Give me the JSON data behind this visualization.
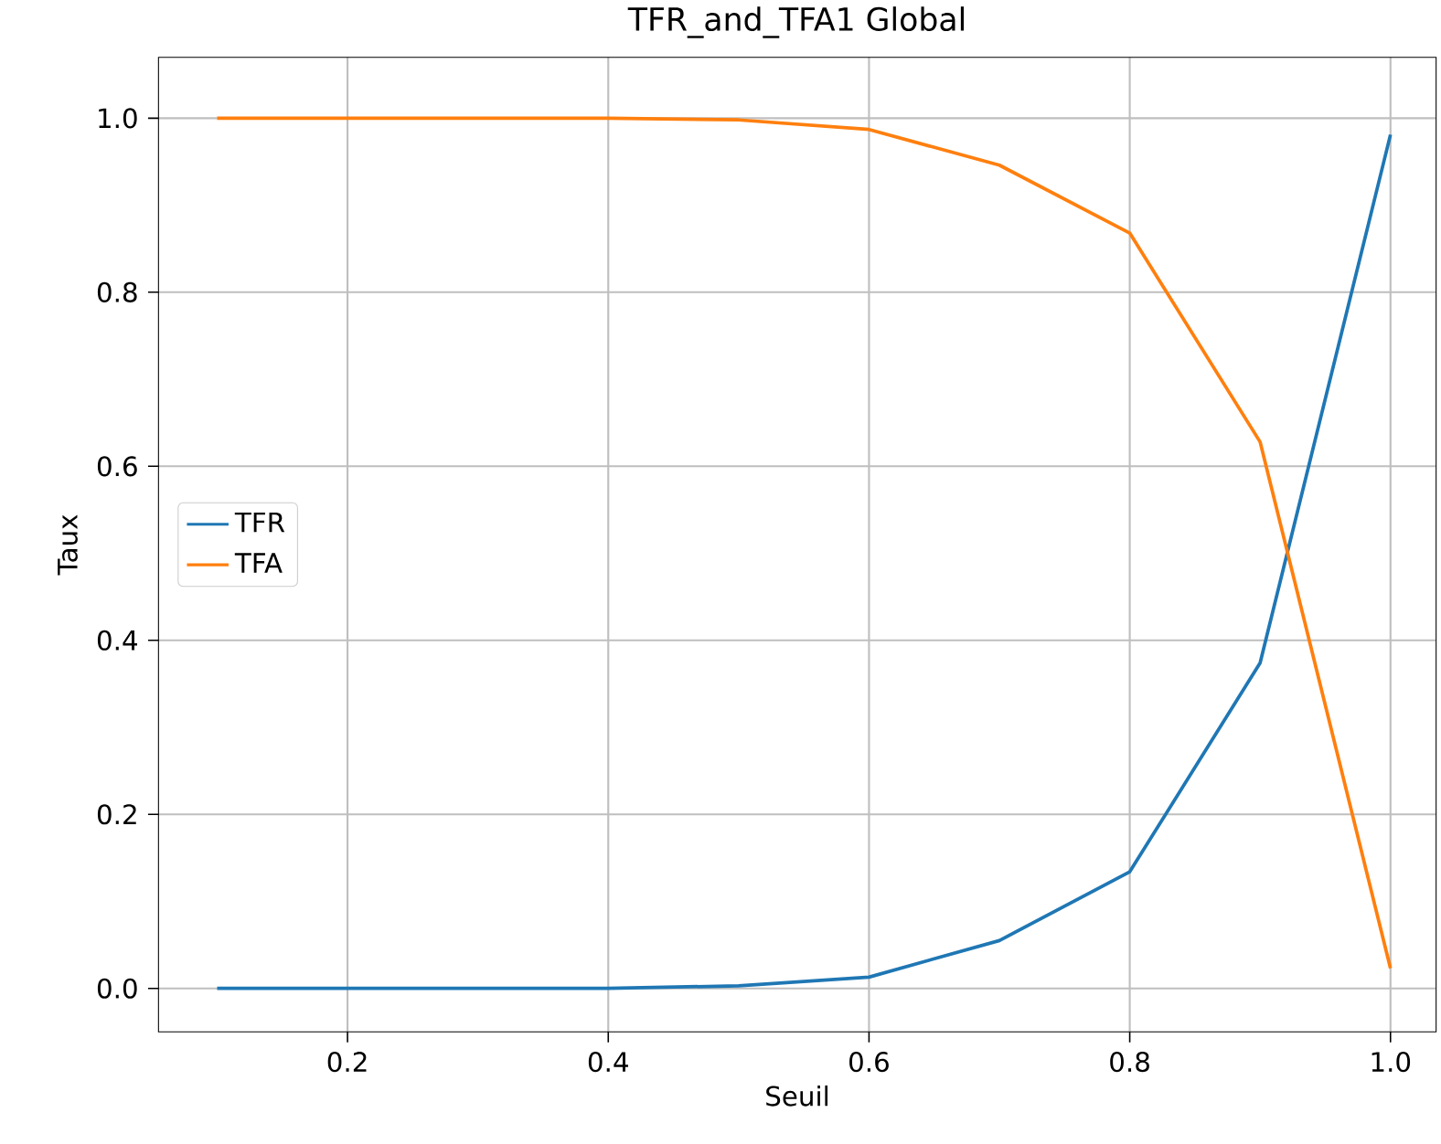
{
  "chart_data": {
    "type": "line",
    "title": "TFR_and_TFA1 Global",
    "xlabel": "Seuil",
    "ylabel": "Taux",
    "x": [
      0.1,
      0.2,
      0.3,
      0.4,
      0.5,
      0.6,
      0.7,
      0.8,
      0.9,
      1.0
    ],
    "series": [
      {
        "name": "TFR",
        "color": "#1f77b4",
        "values": [
          0,
          0,
          0,
          0,
          0.003,
          0.013,
          0.055,
          0.134,
          0.374,
          0.981
        ]
      },
      {
        "name": "TFA",
        "color": "#ff7f0e",
        "values": [
          1.0,
          1.0,
          1.0,
          1.0,
          0.998,
          0.987,
          0.946,
          0.868,
          0.628,
          0.023
        ]
      }
    ],
    "xlim": [
      0.055,
      1.035
    ],
    "ylim": [
      -0.05,
      1.07
    ],
    "xticks": [
      0.2,
      0.4,
      0.6,
      0.8,
      {
        "value": 1,
        "label": "1.0"
      }
    ],
    "yticks": [
      {
        "value": 0,
        "label": "0.0"
      },
      0.2,
      0.4,
      0.6,
      0.8,
      {
        "value": 1,
        "label": "1.0"
      }
    ],
    "grid": true,
    "legend": "left",
    "marker": "none",
    "line_style": "solid"
  }
}
